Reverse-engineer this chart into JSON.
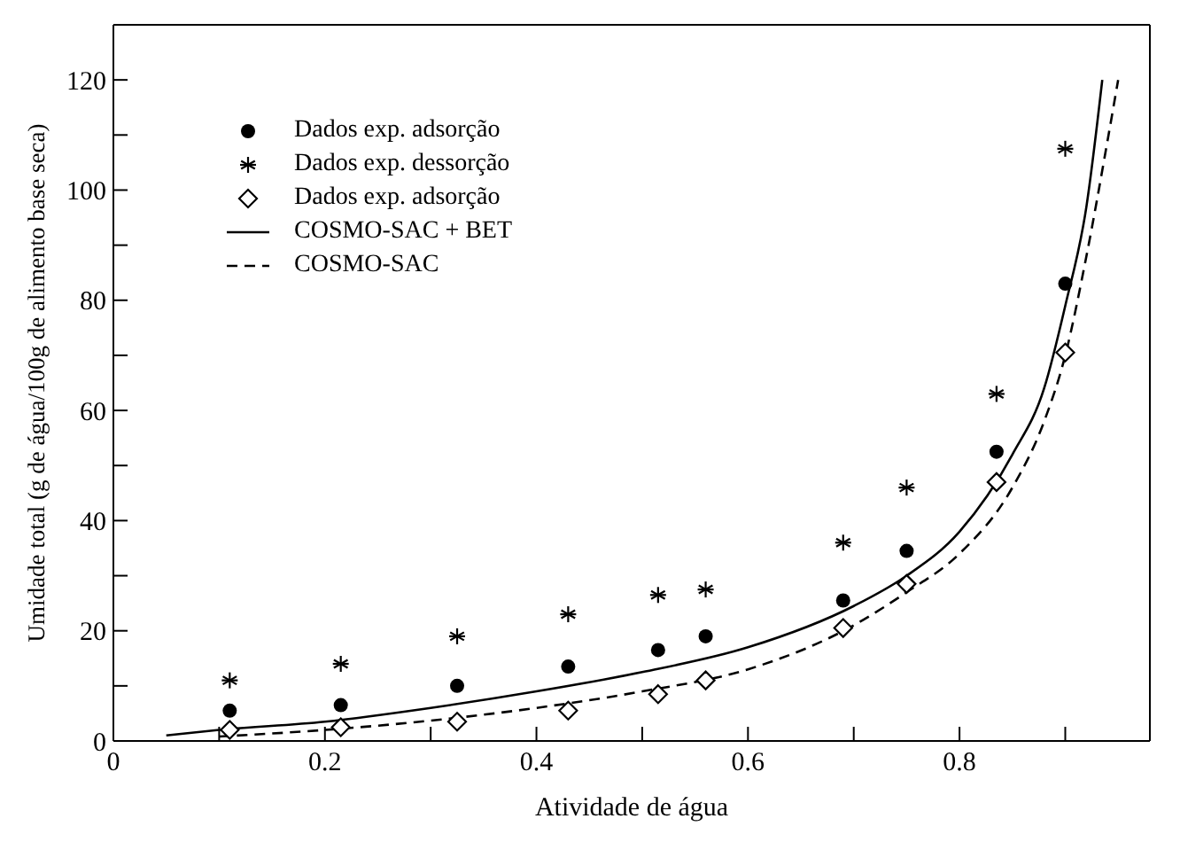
{
  "chart_data": {
    "type": "scatter",
    "xlabel": "Atividade de água",
    "ylabel": "Umidade total (g de água/100g de alimento base seca)",
    "xlim": [
      0,
      0.98
    ],
    "xticks": [
      0,
      {
        "value": 0.1,
        "label": null
      },
      0.2,
      {
        "value": 0.3,
        "label": null
      },
      0.4,
      {
        "value": 0.5,
        "label": null
      },
      0.6,
      {
        "value": 0.7,
        "label": null
      },
      0.8,
      {
        "value": 0.9,
        "label": null
      }
    ],
    "ylim": [
      0,
      130
    ],
    "yticks": [
      0,
      {
        "value": 10,
        "label": null
      },
      20,
      {
        "value": 30,
        "label": null
      },
      40,
      {
        "value": 50,
        "label": null
      },
      60,
      {
        "value": 70,
        "label": null
      },
      80,
      {
        "value": 90,
        "label": null
      },
      100,
      {
        "value": 110,
        "label": null
      },
      120
    ],
    "legend": "top left",
    "series": [
      {
        "name": "Dados exp. adsorção",
        "marker": "circle",
        "color": "#000000",
        "x": [
          0.11,
          0.215,
          0.325,
          0.43,
          0.515,
          0.56,
          0.69,
          0.75,
          0.835,
          0.9
        ],
        "values": [
          5.5,
          6.5,
          10,
          13.5,
          16.5,
          19,
          25.5,
          34.5,
          52.5,
          83
        ]
      },
      {
        "name": "Dados exp. dessorção",
        "marker": "cross",
        "color": "#000000",
        "x": [
          0.11,
          0.215,
          0.325,
          0.43,
          0.515,
          0.56,
          0.69,
          0.75,
          0.835,
          0.9
        ],
        "values": [
          11,
          14,
          19,
          23,
          26.5,
          27.5,
          36,
          46,
          63,
          107.5
        ]
      },
      {
        "name": "Dados exp. adsorção",
        "marker": "diamond",
        "color": "#000000",
        "x": [
          0.11,
          0.215,
          0.325,
          0.43,
          0.515,
          0.56,
          0.69,
          0.75,
          0.835,
          0.9
        ],
        "values": [
          2,
          2.5,
          3.5,
          5.5,
          8.5,
          11,
          20.5,
          28.5,
          47,
          70.5
        ]
      },
      {
        "name": "COSMO-SAC + BET",
        "type": "line",
        "line_style": "solid",
        "color": "#000000",
        "x": [
          0.05,
          0.1,
          0.2,
          0.3,
          0.4,
          0.5,
          0.6,
          0.7,
          0.75,
          0.8,
          0.85,
          0.88,
          0.9,
          0.92,
          0.935
        ],
        "values": [
          1,
          2,
          3.5,
          6,
          9,
          12.5,
          17,
          24.5,
          30,
          38,
          52,
          64,
          79,
          97,
          120
        ]
      },
      {
        "name": "COSMO-SAC",
        "type": "line",
        "line_style": "dashed",
        "color": "#000000",
        "x": [
          0.1,
          0.2,
          0.3,
          0.4,
          0.5,
          0.6,
          0.7,
          0.75,
          0.8,
          0.85,
          0.88,
          0.9,
          0.92,
          0.94,
          0.95
        ],
        "values": [
          0.8,
          2,
          3.7,
          6,
          9,
          13,
          21,
          27,
          34,
          46,
          58,
          70,
          88,
          109,
          120
        ]
      }
    ]
  }
}
